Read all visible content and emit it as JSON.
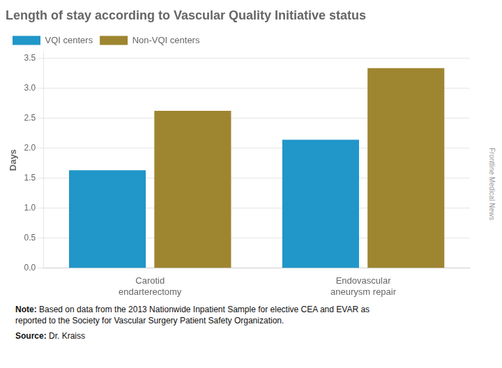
{
  "chart_data": {
    "type": "bar",
    "title": "Length of stay according to Vascular Quality Initiative status",
    "y_label": "Days",
    "categories": [
      "Carotid\nendarterectomy",
      "Endovascular\naneurysm repair"
    ],
    "series": [
      {
        "name": "VQI centers",
        "color": "#2196C8",
        "values": [
          1.63,
          2.14
        ]
      },
      {
        "name": "Non-VQI centers",
        "color": "#9E8530",
        "values": [
          2.62,
          3.33
        ]
      }
    ],
    "ylim": [
      0,
      3.6
    ],
    "yticks": [
      {
        "value": 0,
        "label": "0.0"
      },
      0.5,
      {
        "value": 1,
        "label": "1.0"
      },
      1.5,
      {
        "value": 2,
        "label": "2.0"
      },
      2.5,
      {
        "value": 3,
        "label": "3.0"
      },
      3.5
    ],
    "grid": true,
    "legend": "upper left",
    "annotations": [
      "Note: Based on data from the 2013 Nationwide Inpatient Sample for elective CEA and EVAR as\nreported to the Society for Vascular Surgery Patient Safety Organization.",
      "Source: Dr. Kraiss",
      "Frontline Medical News"
    ]
  }
}
